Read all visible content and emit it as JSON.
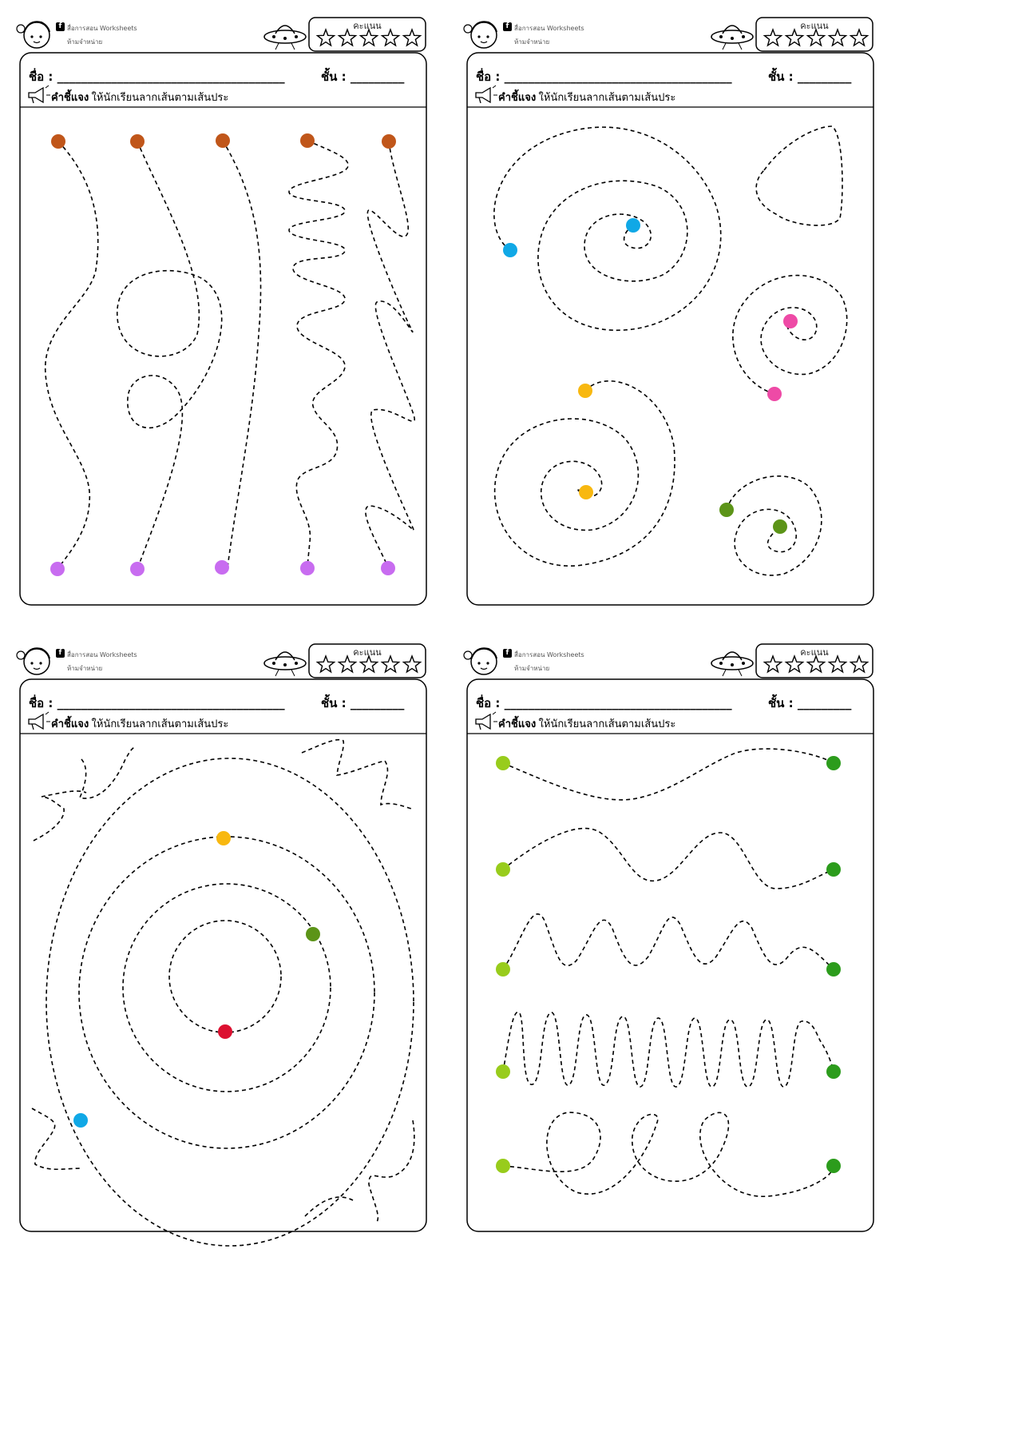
{
  "header": {
    "brand_name": "สื่อการสอน  Worksheets",
    "brand_sub": "ห้ามจำหน่าย",
    "score_label": "คะแนน",
    "name_label": "ชื่อ  :  ______________________________________",
    "class_label": "ชั้น  :  _________",
    "instruction_title": "คำชี้แจง",
    "instruction_text": ":  ให้นักเรียนลากเส้นตามเส้นประ"
  },
  "icons": {
    "mascot": "girl-face-icon",
    "facebook": "facebook-icon",
    "ufo": "ufo-icon",
    "star": "star-outline-icon",
    "megaphone": "megaphone-icon"
  },
  "colors": {
    "start_orange": "#c0561a",
    "end_purple": "#c86cf0",
    "blue": "#10a8e6",
    "pink": "#ee4aa6",
    "yellow": "#f8b810",
    "olive_green": "#5c9418",
    "red": "#dc1030",
    "lime": "#98cc1c",
    "dark_green": "#2c9c1c"
  },
  "sheets": [
    {
      "id": "sheet-1",
      "activity": "trace-vertical-paths"
    },
    {
      "id": "sheet-2",
      "activity": "trace-spirals"
    },
    {
      "id": "sheet-3",
      "activity": "trace-circles"
    },
    {
      "id": "sheet-4",
      "activity": "trace-horizontal-waves"
    }
  ]
}
